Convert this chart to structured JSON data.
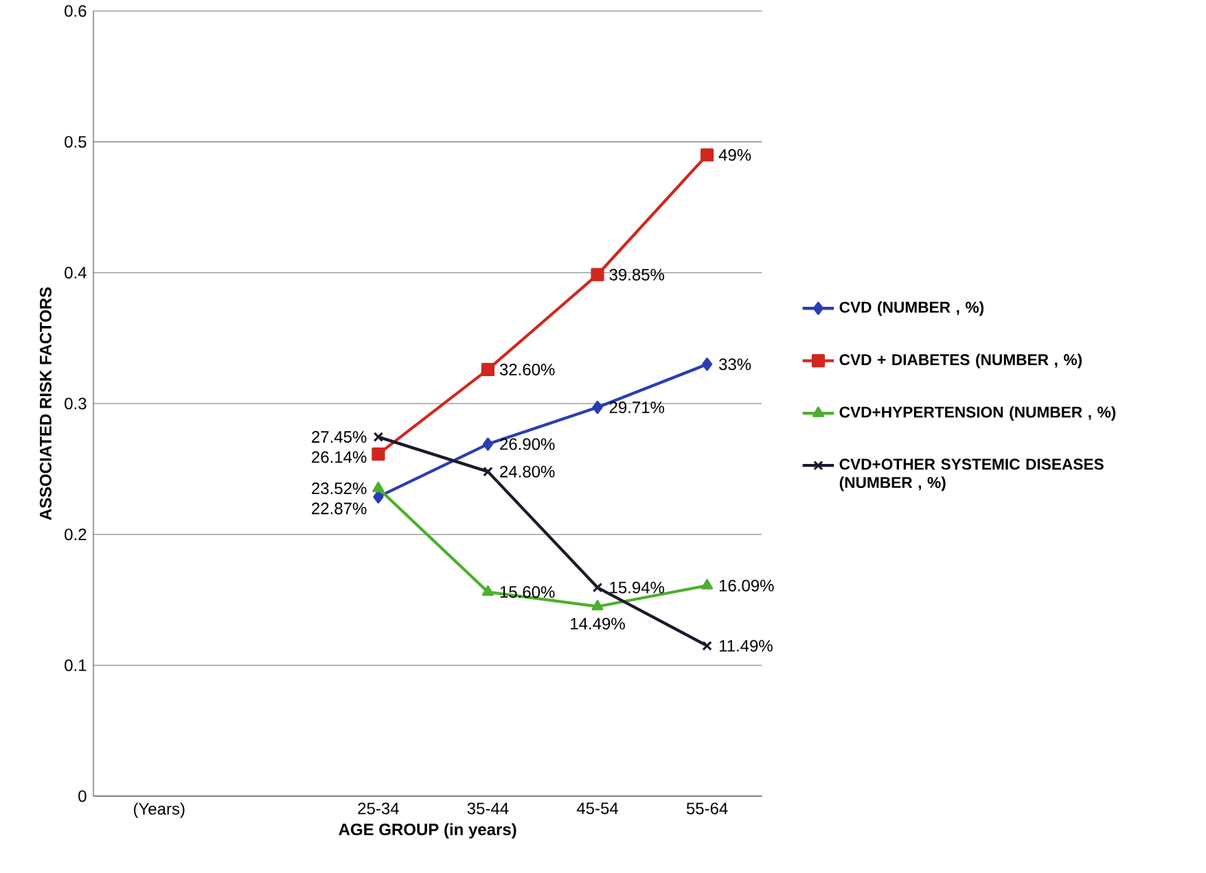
{
  "chart_data": {
    "type": "line",
    "xlabel": "AGE GROUP (in years)",
    "ylabel": "ASSOCIATED RISK FACTORS",
    "categories": [
      "(Years)",
      null,
      "25-34",
      "35-44",
      "45-54",
      "55-64"
    ],
    "ylim": [
      0,
      0.6
    ],
    "yticks": [
      0,
      0.1,
      0.2,
      0.3,
      0.4,
      0.5,
      0.6
    ],
    "grid": "y",
    "legend": "right",
    "series": [
      {
        "name": "CVD (NUMBER , %)",
        "color": "#2a3eb1",
        "marker": "diamond",
        "values": [
          null,
          null,
          0.2287,
          0.269,
          0.2971,
          0.33
        ],
        "value_labels": [
          null,
          null,
          "22.87%",
          "26.90%",
          "29.71%",
          "33%"
        ]
      },
      {
        "name": "CVD + DIABETES (NUMBER , %)",
        "color": "#d0281e",
        "marker": "square",
        "values": [
          null,
          null,
          0.2614,
          0.326,
          0.3985,
          0.49
        ],
        "value_labels": [
          null,
          null,
          "26.14%",
          "32.60%",
          "39.85%",
          "49%"
        ]
      },
      {
        "name": "CVD+HYPERTENSION (NUMBER , %)",
        "color": "#4caf2d",
        "marker": "triangle",
        "values": [
          null,
          null,
          0.2352,
          0.156,
          0.1449,
          0.1609
        ],
        "value_labels": [
          null,
          null,
          "23.52%",
          "15.60%",
          "14.49%",
          "16.09%"
        ]
      },
      {
        "name": "CVD+OTHER SYSTEMIC DISEASES (NUMBER , %)",
        "color": "#1a1a2e",
        "marker": "cross",
        "values": [
          null,
          null,
          0.2745,
          0.248,
          0.1594,
          0.1149
        ],
        "value_labels": [
          null,
          null,
          "27.45%",
          "24.80%",
          "15.94%",
          "11.49%"
        ]
      }
    ]
  }
}
